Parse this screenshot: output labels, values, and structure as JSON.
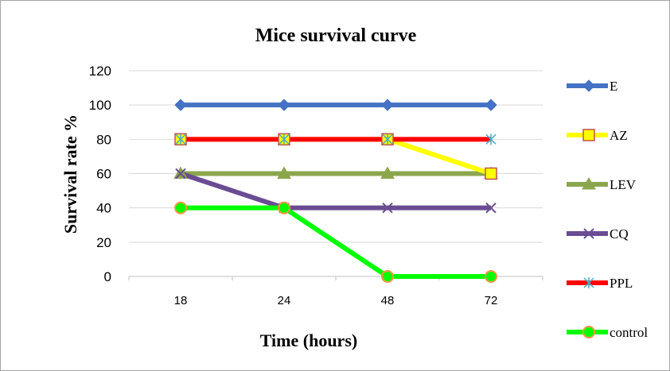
{
  "chart_data": {
    "type": "line",
    "title": "Mice survival curve",
    "xlabel": "Time (hours)",
    "ylabel": "Survival rate %",
    "categories": [
      "18",
      "24",
      "48",
      "72"
    ],
    "ylim": [
      0,
      120
    ],
    "yticks": [
      0,
      20,
      40,
      60,
      80,
      100,
      120
    ],
    "grid": true,
    "legend_position": "right",
    "series": [
      {
        "name": "E",
        "values": [
          100,
          100,
          100,
          100
        ],
        "color": "#4472C4",
        "marker": "diamond"
      },
      {
        "name": "AZ",
        "values": [
          80,
          80,
          80,
          60
        ],
        "color": "#FFFF00",
        "marker": "square"
      },
      {
        "name": "LEV",
        "values": [
          60,
          60,
          60,
          60
        ],
        "color": "#8CA64D",
        "marker": "triangle"
      },
      {
        "name": "CQ",
        "values": [
          60,
          40,
          40,
          40
        ],
        "color": "#6A4C93",
        "marker": "x"
      },
      {
        "name": "PPL",
        "values": [
          80,
          80,
          80,
          80
        ],
        "color": "#FF0000",
        "marker": "star"
      },
      {
        "name": "control",
        "values": [
          40,
          40,
          0,
          0
        ],
        "color": "#00FF00",
        "marker": "circle"
      }
    ]
  }
}
